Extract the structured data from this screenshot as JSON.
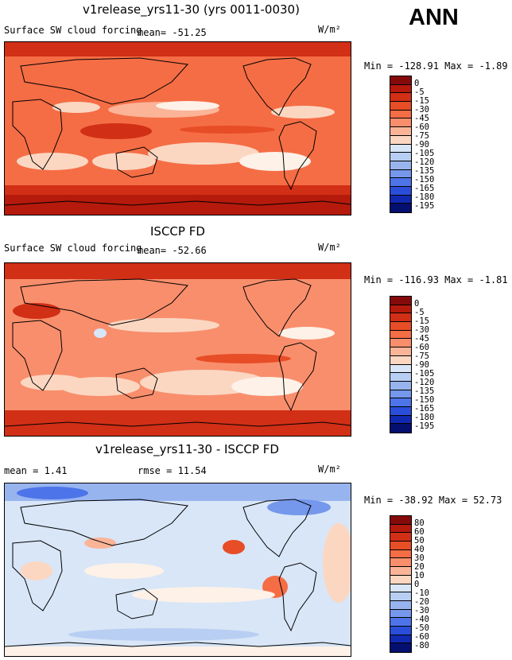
{
  "season": "ANN",
  "colors": {
    "abs_scale": [
      "#850a0a",
      "#b51a0c",
      "#d12f16",
      "#e74d27",
      "#f56d45",
      "#f98e6c",
      "#fbb497",
      "#fbd7c2",
      "#fdf1e8",
      "#d8e6f7",
      "#b8cef2",
      "#98b4ef",
      "#7597ec",
      "#4d74e8",
      "#2a4ed9",
      "#1029b0",
      "#050f70"
    ],
    "diff_scale": [
      "#850a0a",
      "#b51a0c",
      "#d12f16",
      "#e74d27",
      "#f56d45",
      "#f98e6c",
      "#fbb497",
      "#fbd7c2",
      "#fdf1e8",
      "#d8e6f7",
      "#b8cef2",
      "#98b4ef",
      "#7597ec",
      "#4d74e8",
      "#2a4ed9",
      "#1029b0",
      "#050f70"
    ]
  },
  "panels": [
    {
      "title": "v1release_yrs11-30 (yrs 0011-0030)",
      "subtitle": "Surface SW cloud forcing",
      "mean_label": "mean= -51.25",
      "units": "W/m²",
      "minmax": "Min = -128.91 Max =  -1.89"
    },
    {
      "title": "ISCCP FD",
      "subtitle": "Surface SW cloud forcing",
      "mean_label": "mean= -52.66",
      "units": "W/m²",
      "minmax": "Min = -116.93 Max =  -1.81"
    },
    {
      "title": "v1release_yrs11-30 - ISCCP FD",
      "mean_label": "mean =   1.41",
      "rmse_label": "rmse =  11.54",
      "units": "W/m²",
      "minmax": "Min = -38.92 Max =  52.73"
    }
  ],
  "colorbars": {
    "abs_levels": [
      "0",
      "-5",
      "-15",
      "-30",
      "-45",
      "-60",
      "-75",
      "-90",
      "-105",
      "-120",
      "-135",
      "-150",
      "-165",
      "-180",
      "-195"
    ],
    "diff_levels": [
      "80",
      "60",
      "50",
      "40",
      "30",
      "20",
      "10",
      "0",
      "-10",
      "-20",
      "-30",
      "-40",
      "-50",
      "-60",
      "-80"
    ]
  },
  "chart_data": [
    {
      "type": "heatmap",
      "title": "v1release_yrs11-30 (yrs 0011-0030)",
      "variable": "Surface SW cloud forcing",
      "units": "W/m^2",
      "mean": -51.25,
      "min": -128.91,
      "max": -1.89,
      "contour_levels": [
        0,
        -5,
        -15,
        -30,
        -45,
        -60,
        -75,
        -90,
        -105,
        -120,
        -135,
        -150,
        -165,
        -180,
        -195
      ]
    },
    {
      "type": "heatmap",
      "title": "ISCCP FD",
      "variable": "Surface SW cloud forcing",
      "units": "W/m^2",
      "mean": -52.66,
      "min": -116.93,
      "max": -1.81,
      "contour_levels": [
        0,
        -5,
        -15,
        -30,
        -45,
        -60,
        -75,
        -90,
        -105,
        -120,
        -135,
        -150,
        -165,
        -180,
        -195
      ]
    },
    {
      "type": "heatmap",
      "title": "v1release_yrs11-30 - ISCCP FD",
      "units": "W/m^2",
      "mean": 1.41,
      "rmse": 11.54,
      "min": -38.92,
      "max": 52.73,
      "contour_levels": [
        80,
        60,
        50,
        40,
        30,
        20,
        10,
        0,
        -10,
        -20,
        -30,
        -40,
        -50,
        -60,
        -80
      ]
    }
  ]
}
